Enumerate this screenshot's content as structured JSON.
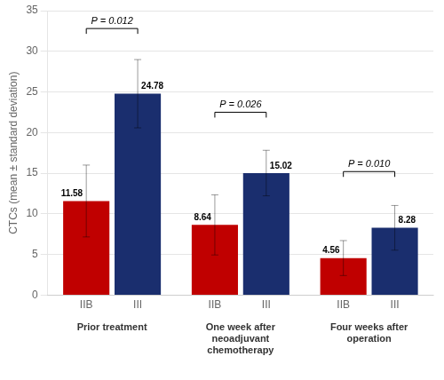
{
  "chart_data": {
    "type": "bar",
    "categories": [
      "Prior treatment",
      "One week after\nneoadjuvant\nchemotherapy",
      "Four weeks after\noperation"
    ],
    "series": [
      {
        "name": "IIB",
        "color": "#c00000",
        "values": [
          11.58,
          8.64,
          4.56
        ],
        "errors": [
          4.42,
          3.7,
          2.15
        ]
      },
      {
        "name": "III",
        "color": "#1a2e6e",
        "values": [
          24.78,
          15.02,
          8.28
        ],
        "errors": [
          4.2,
          2.8,
          2.75
        ]
      }
    ],
    "ylabel": "CTCs (mean ± standard deviation)",
    "ylim": [
      0,
      35
    ],
    "yticks": [
      0,
      5,
      10,
      15,
      20,
      25,
      30,
      35
    ],
    "grid": true,
    "data_labels": true,
    "annotations": [
      {
        "text": "P = 0.012",
        "y": 32.8
      },
      {
        "text": "P = 0.026",
        "y": 22.5
      },
      {
        "text": "P = 0.010",
        "y": 15.2
      }
    ]
  }
}
